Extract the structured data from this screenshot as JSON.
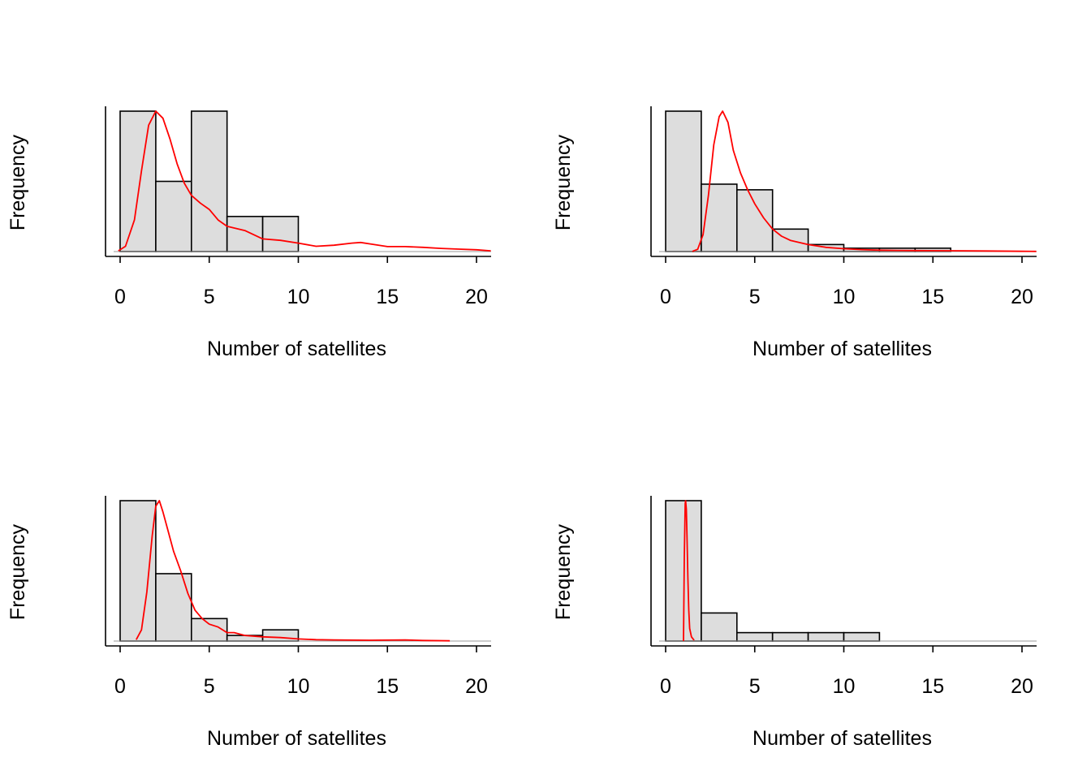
{
  "chart_data": [
    {
      "type": "bar",
      "xlabel": "Number of satellites",
      "ylabel": "Frequency",
      "xlim": [
        0,
        20
      ],
      "x_ticks": [
        0,
        5,
        10,
        15,
        20
      ],
      "ylim": [
        0,
        4
      ],
      "y_ticks_shown": false,
      "bin_width": 2,
      "bins": [
        {
          "start": 0,
          "end": 2,
          "count": 4
        },
        {
          "start": 2,
          "end": 4,
          "count": 2
        },
        {
          "start": 4,
          "end": 6,
          "count": 4
        },
        {
          "start": 6,
          "end": 8,
          "count": 1
        },
        {
          "start": 8,
          "end": 10,
          "count": 1
        }
      ],
      "density_line": {
        "color": "#ff0000",
        "x": [
          -0.1,
          0.3,
          0.8,
          1.2,
          1.6,
          2.0,
          2.4,
          2.8,
          3.2,
          3.6,
          4.0,
          4.5,
          5.0,
          5.5,
          6.0,
          7.0,
          8.0,
          9.0,
          10.0,
          11.0,
          12.0,
          13.0,
          13.5,
          14.0,
          15.0,
          16.0,
          17.0,
          18.0,
          19.0,
          20.0,
          20.8
        ],
        "y": [
          0.02,
          0.15,
          0.9,
          2.3,
          3.6,
          4.0,
          3.8,
          3.2,
          2.5,
          1.95,
          1.6,
          1.38,
          1.2,
          0.9,
          0.72,
          0.6,
          0.36,
          0.32,
          0.24,
          0.15,
          0.18,
          0.24,
          0.26,
          0.22,
          0.14,
          0.14,
          0.12,
          0.09,
          0.07,
          0.05,
          0.02
        ]
      }
    },
    {
      "type": "bar",
      "xlabel": "Number of satellites",
      "ylabel": "Frequency",
      "xlim": [
        0,
        20
      ],
      "x_ticks": [
        0,
        5,
        10,
        15,
        20
      ],
      "ylim": [
        0,
        50
      ],
      "y_ticks_shown": false,
      "bin_width": 2,
      "bins": [
        {
          "start": 0,
          "end": 2,
          "count": 50
        },
        {
          "start": 2,
          "end": 4,
          "count": 24
        },
        {
          "start": 4,
          "end": 6,
          "count": 22
        },
        {
          "start": 6,
          "end": 8,
          "count": 8
        },
        {
          "start": 8,
          "end": 10,
          "count": 2.5
        },
        {
          "start": 10,
          "end": 12,
          "count": 1.2
        },
        {
          "start": 12,
          "end": 14,
          "count": 1.2
        },
        {
          "start": 14,
          "end": 16,
          "count": 1.2
        }
      ],
      "density_line": {
        "color": "#ff0000",
        "x": [
          1.5,
          1.8,
          2.1,
          2.4,
          2.7,
          3.0,
          3.2,
          3.5,
          3.8,
          4.2,
          4.6,
          5.0,
          5.5,
          6.0,
          6.5,
          7.0,
          8.0,
          9.0,
          10.0,
          11.0,
          12.0,
          13.0,
          14.0,
          16.0,
          18.0,
          20.0,
          20.8
        ],
        "y": [
          0.05,
          0.8,
          6,
          20,
          38,
          48,
          50,
          46,
          36,
          28,
          22,
          17,
          12,
          8,
          5.5,
          4,
          2.5,
          1.5,
          1.0,
          0.7,
          0.5,
          0.4,
          0.35,
          0.3,
          0.2,
          0.1,
          0.05
        ]
      }
    },
    {
      "type": "bar",
      "xlabel": "Number of satellites",
      "ylabel": "Frequency",
      "xlim": [
        0,
        20
      ],
      "x_ticks": [
        0,
        5,
        10,
        15,
        20
      ],
      "ylim": [
        0,
        100
      ],
      "y_ticks_shown": false,
      "bin_width": 2,
      "bins": [
        {
          "start": 0,
          "end": 2,
          "count": 100
        },
        {
          "start": 2,
          "end": 4,
          "count": 48
        },
        {
          "start": 4,
          "end": 6,
          "count": 16
        },
        {
          "start": 6,
          "end": 8,
          "count": 4
        },
        {
          "start": 8,
          "end": 10,
          "count": 8
        }
      ],
      "density_line": {
        "color": "#ff0000",
        "x": [
          0.9,
          1.2,
          1.5,
          1.8,
          2.0,
          2.2,
          2.4,
          2.7,
          3.0,
          3.4,
          3.8,
          4.2,
          4.6,
          5.0,
          5.5,
          6.0,
          6.4,
          7.0,
          8.0,
          9.0,
          10.0,
          11.0,
          12.0,
          14.0,
          16.0,
          17.0,
          18.5
        ],
        "y": [
          1,
          8,
          35,
          75,
          96,
          100,
          92,
          78,
          64,
          50,
          34,
          22,
          16,
          12,
          10,
          6,
          6,
          4,
          3,
          2.5,
          1.5,
          1.0,
          0.8,
          0.6,
          0.8,
          0.4,
          0.2
        ]
      }
    },
    {
      "type": "bar",
      "xlabel": "Number of satellites",
      "ylabel": "Frequency",
      "xlim": [
        0,
        20
      ],
      "x_ticks": [
        0,
        5,
        10,
        15,
        20
      ],
      "ylim": [
        0,
        100
      ],
      "y_ticks_shown": false,
      "bin_width": 2,
      "bins": [
        {
          "start": 0,
          "end": 2,
          "count": 100
        },
        {
          "start": 2,
          "end": 4,
          "count": 20
        },
        {
          "start": 4,
          "end": 6,
          "count": 6
        },
        {
          "start": 6,
          "end": 8,
          "count": 6
        },
        {
          "start": 8,
          "end": 10,
          "count": 6
        },
        {
          "start": 10,
          "end": 12,
          "count": 6
        }
      ],
      "density_line": {
        "color": "#ff0000",
        "x": [
          1.0,
          1.05,
          1.1,
          1.12,
          1.16,
          1.2,
          1.25,
          1.3,
          1.35,
          1.45,
          1.6
        ],
        "y": [
          0,
          60,
          98,
          100,
          94,
          75,
          45,
          22,
          9,
          3,
          0.5
        ]
      }
    }
  ]
}
